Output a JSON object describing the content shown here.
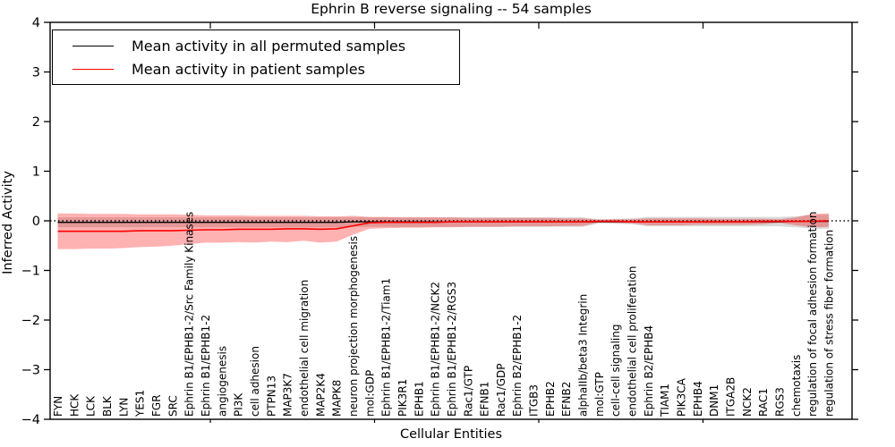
{
  "chart_data": {
    "type": "line",
    "title": "Ephrin B reverse signaling -- 54 samples",
    "xlabel": "Cellular Entities",
    "ylabel": "Inferred Activity",
    "ylim": [
      -4,
      4
    ],
    "yticks": [
      4,
      3,
      2,
      1,
      0,
      -1,
      -2,
      -3,
      -4
    ],
    "grid": false,
    "legend_position": "upper left",
    "zero_line": {
      "style": "dotted",
      "color": "#000000",
      "y": 0
    },
    "categories": [
      "FYN",
      "HCK",
      "LCK",
      "BLK",
      "LYN",
      "YES1",
      "FGR",
      "SRC",
      "Ephrin B1/EPHB1-2/Src Family Kinases",
      "Ephrin B1/EPHB1-2",
      "angiogenesis",
      "PI3K",
      "cell adhesion",
      "PTPN13",
      "MAP3K7",
      "endothelial cell migration",
      "MAP2K4",
      "MAPK8",
      "neuron projection morphogenesis",
      "mol:GDP",
      "Ephrin B1/EPHB1-2/Tiam1",
      "PIK3R1",
      "EPHB1",
      "Ephrin B1/EPHB1-2/NCK2",
      "Ephrin B1/EPHB1-2/RGS3",
      "Rac1/GTP",
      "EFNB1",
      "Rac1/GDP",
      "Ephrin B2/EPHB1-2",
      "ITGB3",
      "EPHB2",
      "EFNB2",
      "alphaIIb/beta3 Integrin",
      "mol:GTP",
      "cell-cell signaling",
      "endothelial cell proliferation",
      "Ephrin B2/EPHB4",
      "TIAM1",
      "PIK3CA",
      "EPHB4",
      "DNM1",
      "ITGA2B",
      "NCK2",
      "RAC1",
      "RGS3",
      "chemotaxis",
      "regulation of focal adhesion formation",
      "regulation of stress fiber formation"
    ],
    "series": [
      {
        "name": "Mean activity in all permuted samples",
        "color": "#000000",
        "values": [
          -0.03,
          -0.03,
          -0.03,
          -0.03,
          -0.03,
          -0.03,
          -0.03,
          -0.03,
          -0.03,
          -0.03,
          -0.03,
          -0.03,
          -0.03,
          -0.03,
          -0.03,
          -0.03,
          -0.03,
          -0.03,
          -0.02,
          -0.02,
          -0.02,
          -0.02,
          -0.02,
          -0.02,
          -0.02,
          -0.02,
          -0.02,
          -0.02,
          -0.02,
          -0.02,
          -0.02,
          -0.02,
          -0.02,
          -0.02,
          -0.02,
          -0.02,
          -0.02,
          -0.02,
          -0.02,
          -0.02,
          -0.02,
          -0.02,
          -0.02,
          -0.02,
          -0.02,
          -0.01,
          -0.01,
          -0.01
        ]
      },
      {
        "name": "Mean activity in patient samples",
        "color": "#ff0000",
        "values": [
          -0.21,
          -0.21,
          -0.21,
          -0.21,
          -0.21,
          -0.2,
          -0.2,
          -0.2,
          -0.19,
          -0.18,
          -0.18,
          -0.17,
          -0.17,
          -0.17,
          -0.16,
          -0.16,
          -0.17,
          -0.16,
          -0.1,
          -0.04,
          -0.03,
          -0.03,
          -0.03,
          -0.03,
          -0.02,
          -0.02,
          -0.02,
          -0.02,
          -0.02,
          -0.02,
          -0.02,
          -0.02,
          -0.02,
          -0.01,
          -0.01,
          -0.02,
          -0.02,
          -0.02,
          -0.02,
          -0.02,
          -0.02,
          -0.02,
          -0.02,
          -0.01,
          -0.01,
          -0.01,
          -0.01,
          0.0
        ]
      }
    ],
    "bands": [
      {
        "name": "permuted samples range",
        "color": "#808080",
        "opacity": 0.3,
        "upper": [
          0.07,
          0.07,
          0.07,
          0.07,
          0.07,
          0.07,
          0.07,
          0.07,
          0.07,
          0.07,
          0.07,
          0.07,
          0.07,
          0.07,
          0.07,
          0.07,
          0.07,
          0.07,
          0.07,
          0.07,
          0.07,
          0.07,
          0.07,
          0.07,
          0.07,
          0.07,
          0.07,
          0.07,
          0.07,
          0.07,
          0.07,
          0.07,
          0.07,
          0.03,
          0.04,
          0.05,
          0.08,
          0.08,
          0.08,
          0.08,
          0.08,
          0.08,
          0.08,
          0.08,
          0.08,
          0.09,
          0.12,
          0.12
        ],
        "lower": [
          -0.13,
          -0.13,
          -0.13,
          -0.13,
          -0.13,
          -0.13,
          -0.13,
          -0.13,
          -0.13,
          -0.13,
          -0.13,
          -0.13,
          -0.13,
          -0.13,
          -0.13,
          -0.13,
          -0.13,
          -0.13,
          -0.12,
          -0.12,
          -0.12,
          -0.12,
          -0.12,
          -0.12,
          -0.12,
          -0.12,
          -0.12,
          -0.12,
          -0.12,
          -0.12,
          -0.12,
          -0.12,
          -0.12,
          -0.05,
          -0.06,
          -0.07,
          -0.11,
          -0.11,
          -0.11,
          -0.11,
          -0.11,
          -0.11,
          -0.11,
          -0.11,
          -0.11,
          -0.13,
          -0.16,
          -0.16
        ]
      },
      {
        "name": "patient samples range",
        "color": "#ff0000",
        "opacity": 0.3,
        "upper": [
          0.15,
          0.15,
          0.14,
          0.14,
          0.14,
          0.13,
          0.13,
          0.13,
          0.12,
          0.11,
          0.11,
          0.11,
          0.1,
          0.1,
          0.1,
          0.1,
          0.09,
          0.09,
          0.1,
          0.08,
          0.08,
          0.07,
          0.07,
          0.07,
          0.07,
          0.06,
          0.06,
          0.06,
          0.06,
          0.06,
          0.06,
          0.05,
          0.05,
          0.02,
          0.03,
          0.03,
          0.05,
          0.05,
          0.05,
          0.05,
          0.04,
          0.04,
          0.04,
          0.04,
          0.03,
          0.07,
          0.14,
          0.15
        ],
        "lower": [
          -0.57,
          -0.57,
          -0.56,
          -0.56,
          -0.55,
          -0.53,
          -0.52,
          -0.5,
          -0.47,
          -0.44,
          -0.44,
          -0.43,
          -0.44,
          -0.42,
          -0.43,
          -0.4,
          -0.44,
          -0.42,
          -0.28,
          -0.16,
          -0.15,
          -0.14,
          -0.14,
          -0.13,
          -0.13,
          -0.12,
          -0.12,
          -0.12,
          -0.11,
          -0.11,
          -0.11,
          -0.1,
          -0.1,
          -0.03,
          -0.04,
          -0.05,
          -0.09,
          -0.09,
          -0.09,
          -0.08,
          -0.08,
          -0.08,
          -0.08,
          -0.07,
          -0.04,
          -0.09,
          -0.13,
          -0.12
        ]
      }
    ]
  }
}
